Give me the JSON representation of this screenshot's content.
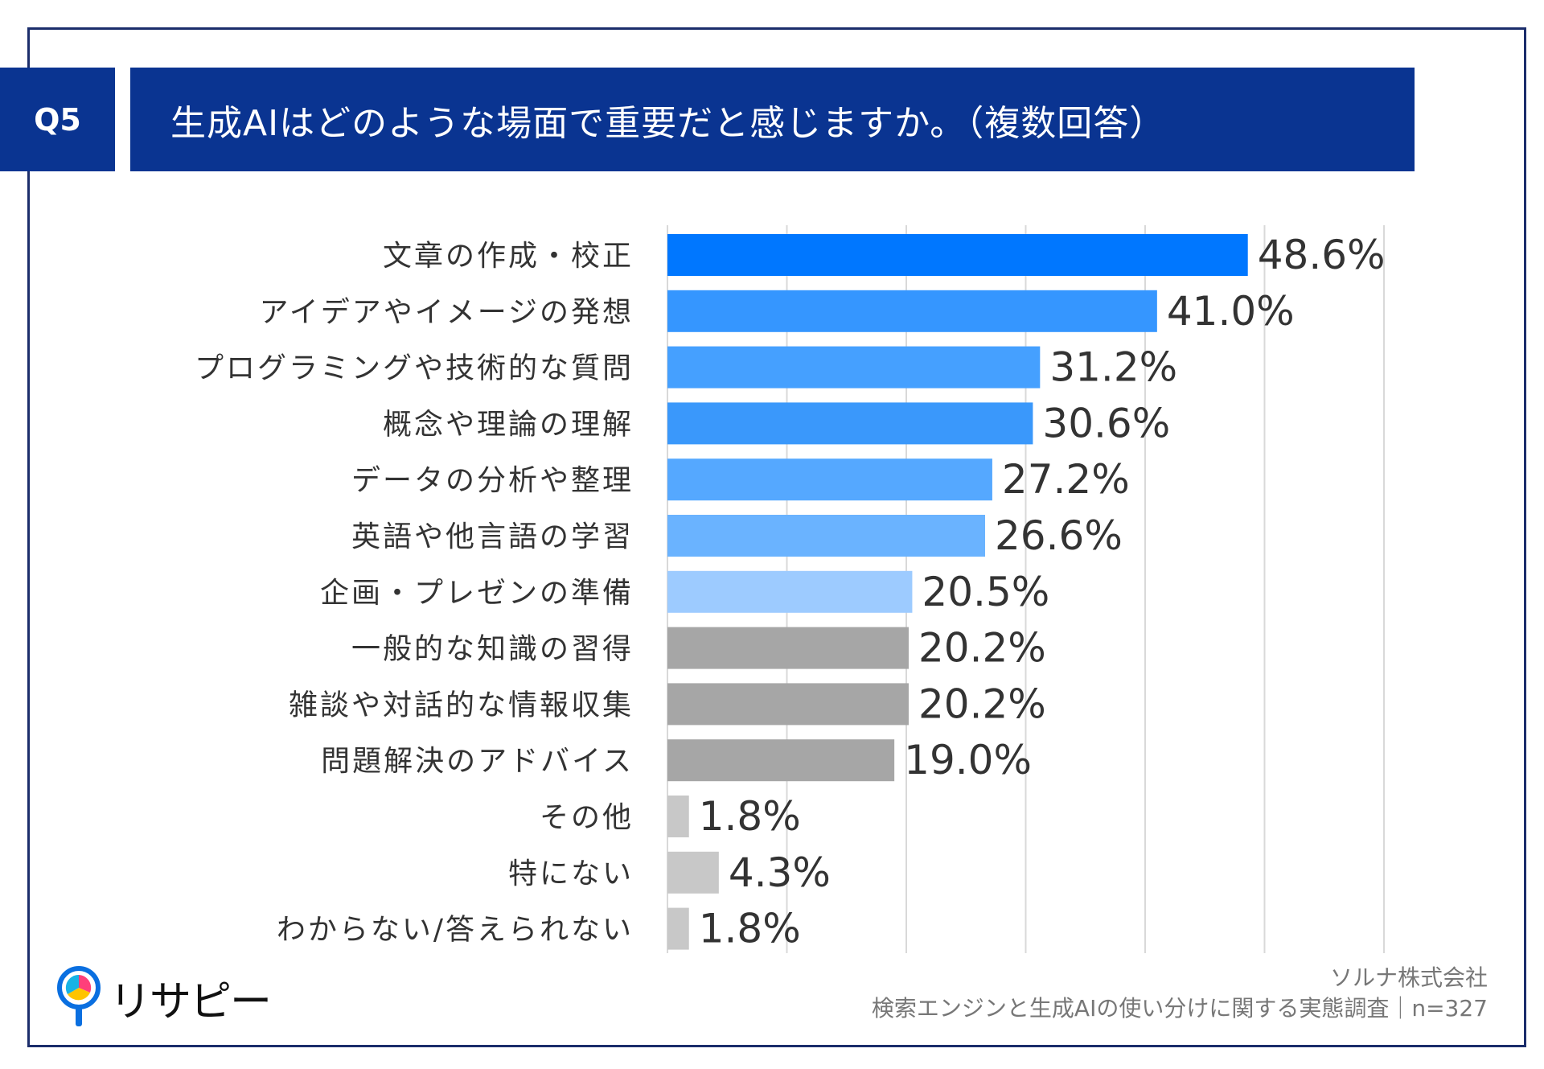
{
  "header": {
    "q_number": "Q5",
    "question": "生成AIはどのような場面で重要だと感じますか。（複数回答）"
  },
  "chart_data": {
    "type": "bar",
    "orientation": "horizontal",
    "title": "生成AIはどのような場面で重要だと感じますか。（複数回答）",
    "categories": [
      "文章の作成・校正",
      "アイデアやイメージの発想",
      "プログラミングや技術的な質問",
      "概念や理論の理解",
      "データの分析や整理",
      "英語や他言語の学習",
      "企画・プレゼンの準備",
      "一般的な知識の習得",
      "雑談や対話的な情報収集",
      "問題解決のアドバイス",
      "その他",
      "特にない",
      "わからない/答えられない"
    ],
    "values": [
      48.6,
      41.0,
      31.2,
      30.6,
      27.2,
      26.6,
      20.5,
      20.2,
      20.2,
      19.0,
      1.8,
      4.3,
      1.8
    ],
    "value_labels": [
      "48.6%",
      "41.0%",
      "31.2%",
      "30.6%",
      "27.2%",
      "26.6%",
      "20.5%",
      "20.2%",
      "20.2%",
      "19.0%",
      "1.8%",
      "4.3%",
      "1.8%"
    ],
    "colors": [
      "#0077ff",
      "#3596ff",
      "#45a0ff",
      "#3a98fb",
      "#55a8ff",
      "#6ab3ff",
      "#9dcbff",
      "#a6a6a6",
      "#a6a6a6",
      "#a6a6a6",
      "#c8c8c8",
      "#c8c8c8",
      "#c8c8c8"
    ],
    "xlim": [
      0,
      60
    ],
    "gridlines": [
      10,
      20,
      30,
      40,
      50,
      60
    ],
    "unit": "%"
  },
  "footer": {
    "brand": "リサピー",
    "source_line1": "ソルナ株式会社",
    "source_line2": "検索エンジンと生成AIの使い分けに関する実態調査｜n=327"
  },
  "theme": {
    "navy": "#0a3491",
    "border": "#1b2d6b",
    "grid": "#d9d9d9"
  }
}
